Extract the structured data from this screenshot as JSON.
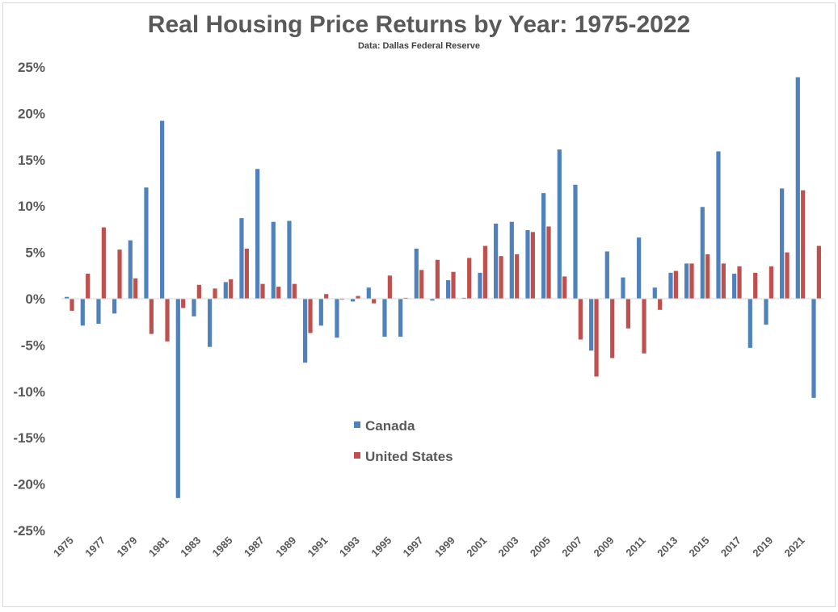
{
  "chart_data": {
    "type": "bar",
    "title": "Real Housing Price Returns by Year: 1975-2022",
    "subtitle": "Data: Dallas Federal Reserve",
    "xlabel": "",
    "ylabel": "",
    "ylim": [
      -25,
      25
    ],
    "yticks": [
      "25%",
      "20%",
      "15%",
      "10%",
      "5%",
      "0%",
      "-5%",
      "-10%",
      "-15%",
      "-20%",
      "-25%"
    ],
    "ytick_values": [
      25,
      20,
      15,
      10,
      5,
      0,
      -5,
      -10,
      -15,
      -20,
      -25
    ],
    "xtick_labels": [
      "1975",
      "1977",
      "1979",
      "1981",
      "1983",
      "1985",
      "1987",
      "1989",
      "1991",
      "1993",
      "1995",
      "1997",
      "1999",
      "2001",
      "2003",
      "2005",
      "2007",
      "2009",
      "2011",
      "2013",
      "2015",
      "2017",
      "2019",
      "2021"
    ],
    "categories": [
      1975,
      1976,
      1977,
      1978,
      1979,
      1980,
      1981,
      1982,
      1983,
      1984,
      1985,
      1986,
      1987,
      1988,
      1989,
      1990,
      1991,
      1992,
      1993,
      1994,
      1995,
      1996,
      1997,
      1998,
      1999,
      2000,
      2001,
      2002,
      2003,
      2004,
      2005,
      2006,
      2007,
      2008,
      2009,
      2010,
      2011,
      2012,
      2013,
      2014,
      2015,
      2016,
      2017,
      2018,
      2019,
      2020,
      2021,
      2022
    ],
    "series": [
      {
        "name": "Canada",
        "color": "#4f81bd",
        "values": [
          0.2,
          -2.9,
          -2.7,
          -1.6,
          6.3,
          12.0,
          19.2,
          -21.5,
          -1.9,
          -5.2,
          1.8,
          8.7,
          14.0,
          8.3,
          8.4,
          -6.9,
          -2.9,
          -4.2,
          -0.3,
          1.2,
          -4.1,
          -4.1,
          5.4,
          -0.2,
          2.0,
          0.1,
          2.8,
          8.1,
          8.3,
          7.4,
          11.4,
          16.1,
          12.3,
          -5.6,
          5.1,
          2.3,
          6.6,
          1.2,
          2.8,
          3.8,
          9.9,
          15.9,
          2.7,
          -5.3,
          -2.8,
          11.9,
          23.9,
          -10.7
        ]
      },
      {
        "name": "United States",
        "color": "#c0504d",
        "values": [
          -1.3,
          2.7,
          7.7,
          5.3,
          2.2,
          -3.8,
          -4.6,
          -1.0,
          1.5,
          1.1,
          2.1,
          5.4,
          1.6,
          1.3,
          1.6,
          -3.7,
          0.5,
          -0.1,
          0.3,
          -0.5,
          2.5,
          0.1,
          3.1,
          4.2,
          2.9,
          4.4,
          5.7,
          4.6,
          4.8,
          7.2,
          7.8,
          2.4,
          -4.4,
          -8.4,
          -6.4,
          -3.2,
          -5.9,
          -1.2,
          3.0,
          3.8,
          4.8,
          3.8,
          3.5,
          2.8,
          3.5,
          5.0,
          11.7,
          5.7
        ]
      }
    ],
    "legend_position": "center-bottom",
    "grid": false
  }
}
